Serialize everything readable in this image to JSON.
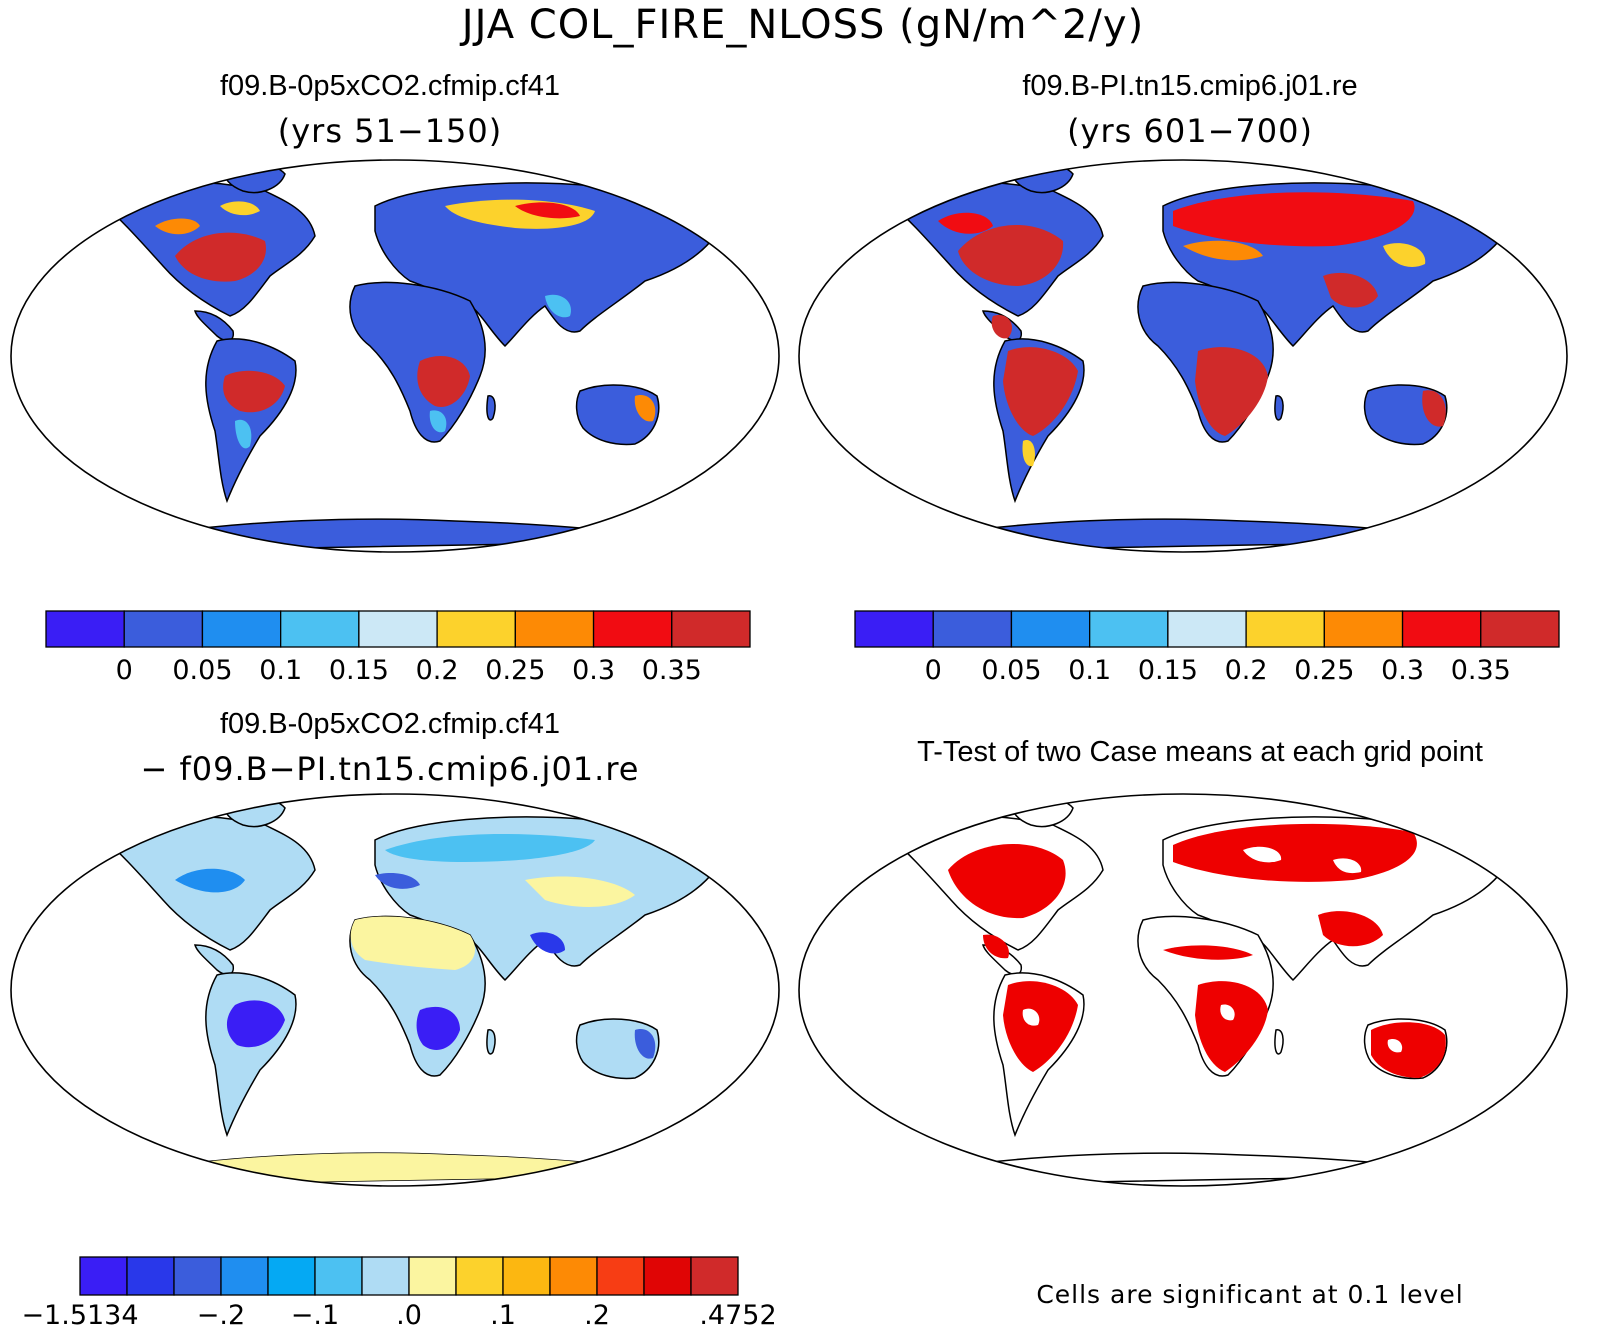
{
  "figure": {
    "title": "JJA COL_FIRE_NLOSS (gN/m^2/y)"
  },
  "panels": [
    {
      "id": "case1",
      "title": "f09.B-0p5xCO2.cfmip.cf41",
      "subtitle": "(yrs 51−150)"
    },
    {
      "id": "case2",
      "title": "f09.B-PI.tn15.cmip6.j01.re",
      "subtitle": "(yrs 601−700)"
    },
    {
      "id": "diff",
      "title": "f09.B-0p5xCO2.cfmip.cf41",
      "subtitle": "− f09.B−PI.tn15.cmip6.j01.re"
    },
    {
      "id": "ttest",
      "title": "T-Test of two Case means at each grid point",
      "note": "Cells are significant at 0.1 level",
      "significant_color": "#ee0000"
    }
  ],
  "colorbars": {
    "abs": {
      "colors": [
        "#3a1ef5",
        "#3b5ddc",
        "#1f8ef0",
        "#4cc1f2",
        "#cce8f6",
        "#fcd22c",
        "#fd8a05",
        "#f10c12",
        "#d02a2a"
      ],
      "labels": [
        "0",
        "0.05",
        "0.1",
        "0.15",
        "0.2",
        "0.25",
        "0.3",
        "0.35"
      ]
    },
    "diff": {
      "colors": [
        "#3a1ef5",
        "#2938ea",
        "#3b5ddc",
        "#1f8ef0",
        "#05a9f3",
        "#4cc1f2",
        "#afdcf4",
        "#fbf5a0",
        "#fcd22c",
        "#fcb711",
        "#fd8a05",
        "#f73d14",
        "#e00505",
        "#d02a2a"
      ],
      "labels": [
        "−1.5134",
        "−.2",
        "−.1",
        ".0",
        ".1",
        ".2",
        ".4752"
      ]
    }
  }
}
